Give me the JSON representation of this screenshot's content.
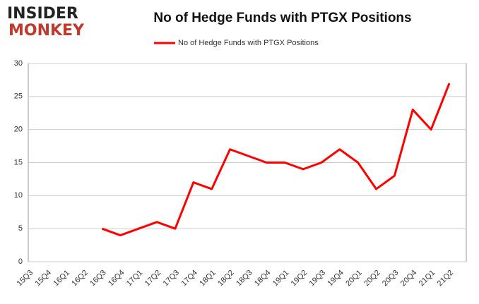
{
  "logo": {
    "line1": "INSIDER",
    "line2": "MONKEY"
  },
  "chart_data": {
    "type": "line",
    "title": "No of Hedge Funds with PTGX Positions",
    "categories": [
      "15Q3",
      "15Q4",
      "16Q1",
      "16Q2",
      "16Q3",
      "16Q4",
      "17Q1",
      "17Q2",
      "17Q3",
      "17Q4",
      "18Q1",
      "18Q2",
      "18Q3",
      "18Q4",
      "19Q1",
      "19Q2",
      "19Q3",
      "19Q4",
      "20Q1",
      "20Q2",
      "20Q3",
      "20Q4",
      "21Q1",
      "21Q2"
    ],
    "series": [
      {
        "name": "No of Hedge Funds with PTGX Positions",
        "color": "#ff0000",
        "values": [
          null,
          null,
          null,
          null,
          5,
          4,
          5,
          6,
          5,
          12,
          11,
          17,
          16,
          15,
          15,
          14,
          15,
          17,
          15,
          11,
          13,
          23,
          20,
          27
        ]
      }
    ],
    "ylim": [
      0,
      30
    ],
    "yticks": [
      0,
      5,
      10,
      15,
      20,
      25,
      30
    ],
    "grid": true,
    "legend": "top"
  }
}
